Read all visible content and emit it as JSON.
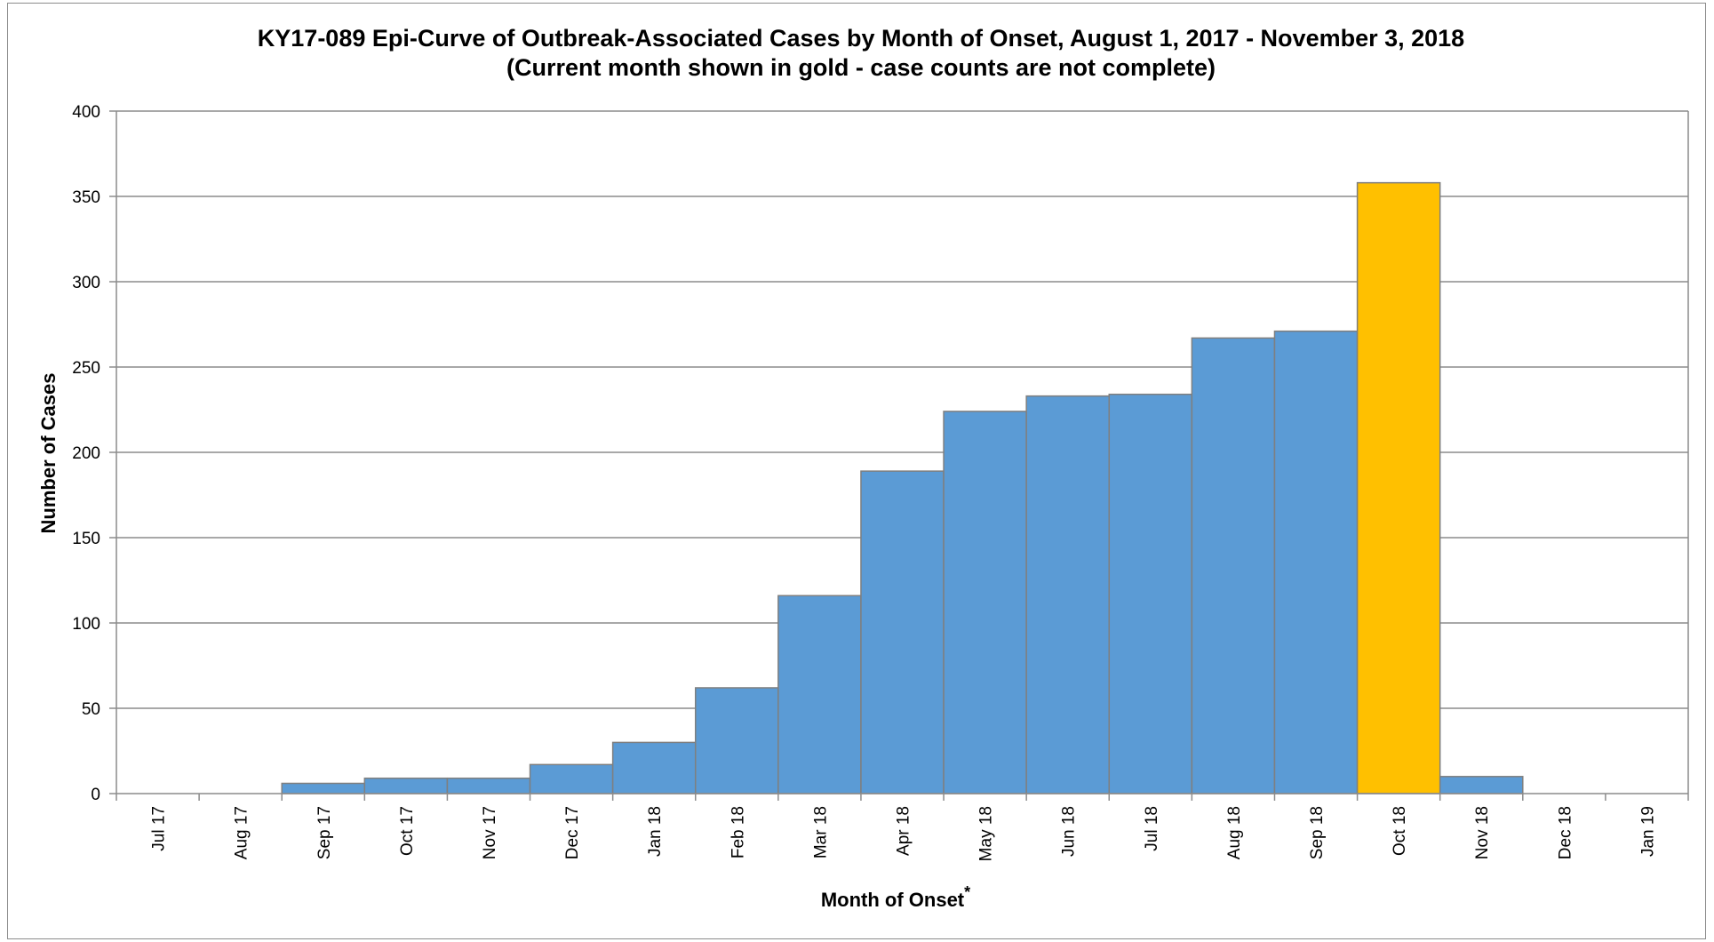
{
  "chart_data": {
    "type": "bar",
    "title": "KY17-089 Epi-Curve of Outbreak-Associated Cases by Month of Onset, August 1, 2017 - November 3, 2018",
    "subtitle": "(Current month shown in gold - case counts are not complete)",
    "xlabel": "Month of Onset",
    "xlabel_note": "*",
    "ylabel": "Number of Cases",
    "ylim": [
      0,
      400
    ],
    "yticks": [
      0,
      50,
      100,
      150,
      200,
      250,
      300,
      350,
      400
    ],
    "grid": true,
    "legend": "none",
    "categories": [
      "Jul 17",
      "Aug 17",
      "Sep 17",
      "Oct 17",
      "Nov 17",
      "Dec 17",
      "Jan 18",
      "Feb 18",
      "Mar 18",
      "Apr 18",
      "May 18",
      "Jun 18",
      "Jul 18",
      "Aug 18",
      "Sep 18",
      "Oct 18",
      "Nov 18",
      "Dec 18",
      "Jan 19"
    ],
    "values": [
      0,
      0,
      6,
      9,
      9,
      17,
      30,
      62,
      116,
      189,
      224,
      233,
      234,
      267,
      271,
      358,
      10,
      0,
      0
    ],
    "highlight_category": "Oct 18",
    "colors": {
      "bar": "#5b9bd5",
      "highlight": "#ffc000",
      "bar_edge": "#7f7f7f",
      "grid": "#8c8c8c"
    }
  }
}
